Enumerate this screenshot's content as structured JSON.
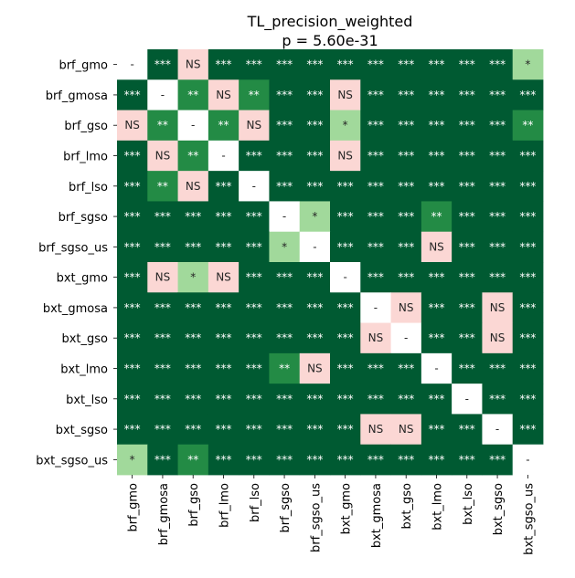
{
  "chart_data": {
    "type": "heatmap",
    "title": "TL_precision_weighted",
    "subtitle": "p = 5.60e-31",
    "labels": [
      "brf_gmo",
      "brf_gmosa",
      "brf_gso",
      "brf_lmo",
      "brf_lso",
      "brf_sgso",
      "brf_sgso_us",
      "bxt_gmo",
      "bxt_gmosa",
      "bxt_gso",
      "bxt_lmo",
      "bxt_lso",
      "bxt_sgso",
      "bxt_sgso_us"
    ],
    "matrix": [
      [
        "-",
        "***",
        "NS",
        "***",
        "***",
        "***",
        "***",
        "***",
        "***",
        "***",
        "***",
        "***",
        "***",
        "*"
      ],
      [
        "***",
        "-",
        "**",
        "NS",
        "**",
        "***",
        "***",
        "NS",
        "***",
        "***",
        "***",
        "***",
        "***",
        "***"
      ],
      [
        "NS",
        "**",
        "-",
        "**",
        "NS",
        "***",
        "***",
        "*",
        "***",
        "***",
        "***",
        "***",
        "***",
        "**"
      ],
      [
        "***",
        "NS",
        "**",
        "-",
        "***",
        "***",
        "***",
        "NS",
        "***",
        "***",
        "***",
        "***",
        "***",
        "***"
      ],
      [
        "***",
        "**",
        "NS",
        "***",
        "-",
        "***",
        "***",
        "***",
        "***",
        "***",
        "***",
        "***",
        "***",
        "***"
      ],
      [
        "***",
        "***",
        "***",
        "***",
        "***",
        "-",
        "*",
        "***",
        "***",
        "***",
        "**",
        "***",
        "***",
        "***"
      ],
      [
        "***",
        "***",
        "***",
        "***",
        "***",
        "*",
        "-",
        "***",
        "***",
        "***",
        "NS",
        "***",
        "***",
        "***"
      ],
      [
        "***",
        "NS",
        "*",
        "NS",
        "***",
        "***",
        "***",
        "-",
        "***",
        "***",
        "***",
        "***",
        "***",
        "***"
      ],
      [
        "***",
        "***",
        "***",
        "***",
        "***",
        "***",
        "***",
        "***",
        "-",
        "NS",
        "***",
        "***",
        "NS",
        "***"
      ],
      [
        "***",
        "***",
        "***",
        "***",
        "***",
        "***",
        "***",
        "***",
        "NS",
        "-",
        "***",
        "***",
        "NS",
        "***"
      ],
      [
        "***",
        "***",
        "***",
        "***",
        "***",
        "**",
        "NS",
        "***",
        "***",
        "***",
        "-",
        "***",
        "***",
        "***"
      ],
      [
        "***",
        "***",
        "***",
        "***",
        "***",
        "***",
        "***",
        "***",
        "***",
        "***",
        "***",
        "-",
        "***",
        "***"
      ],
      [
        "***",
        "***",
        "***",
        "***",
        "***",
        "***",
        "***",
        "***",
        "NS",
        "NS",
        "***",
        "***",
        "-",
        "***"
      ],
      [
        "*",
        "***",
        "**",
        "***",
        "***",
        "***",
        "***",
        "***",
        "***",
        "***",
        "***",
        "***",
        "***",
        "-"
      ]
    ],
    "colors": {
      "***": "#005a32",
      "**": "#238b45",
      "*": "#a1d99b",
      "NS": "#fbd7d4",
      "-": "#ffffff"
    },
    "text_colors": {
      "***": "#ffffff",
      "**": "#ffffff",
      "*": "#262626",
      "NS": "#262626",
      "-": "#262626"
    }
  }
}
